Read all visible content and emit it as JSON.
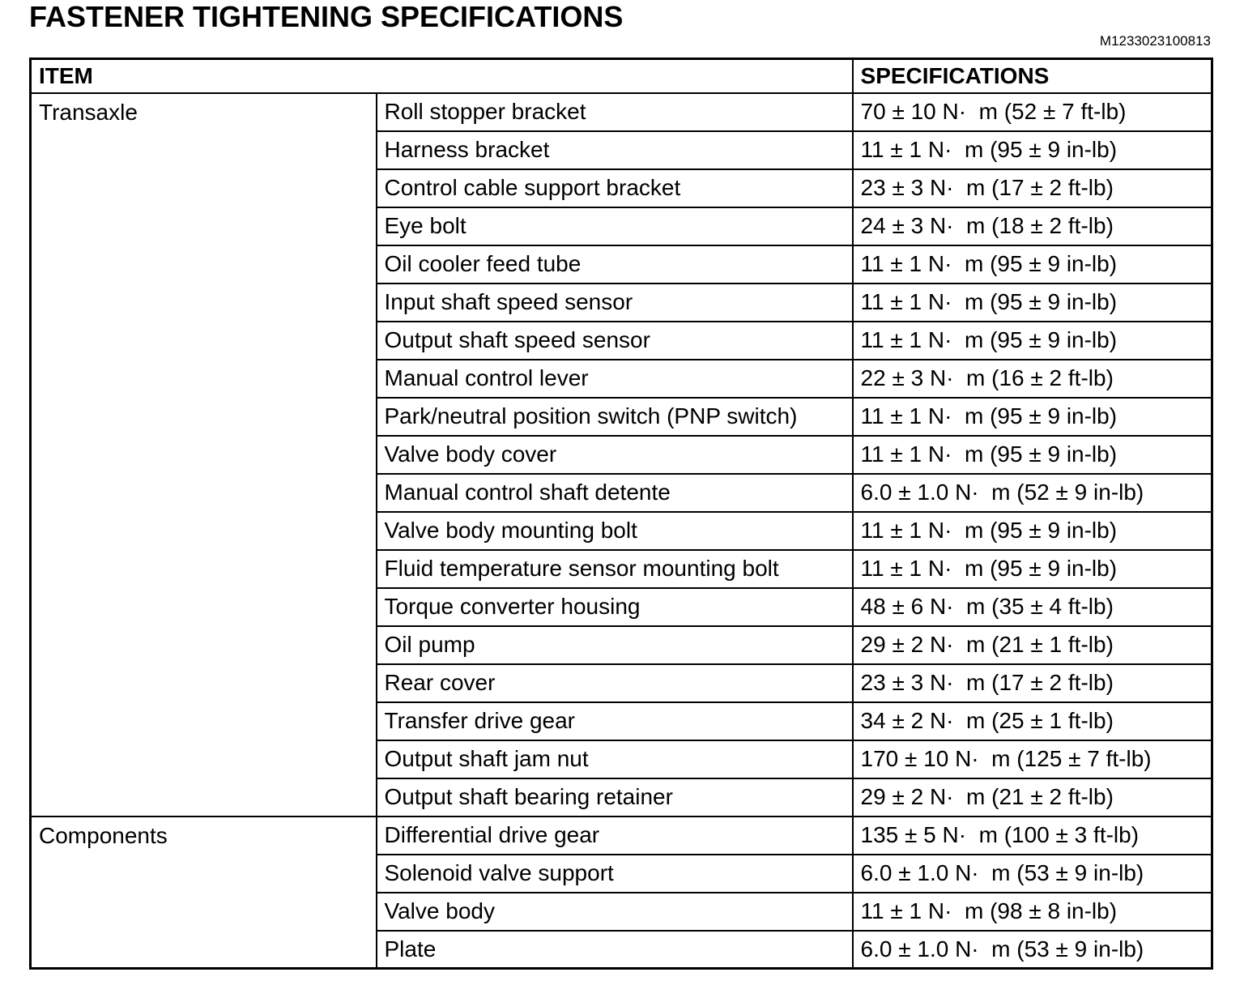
{
  "page": {
    "title": "FASTENER TIGHTENING SPECIFICATIONS",
    "doc_code": "M1233023100813"
  },
  "colors": {
    "text": "#000000",
    "background": "#ffffff",
    "border": "#000000"
  },
  "table": {
    "headers": {
      "item": "ITEM",
      "specifications": "SPECIFICATIONS"
    },
    "groups": [
      {
        "name": "Transaxle",
        "rows": [
          {
            "item": "Roll stopper bracket",
            "spec": "70 ± 10 N·  m (52 ± 7 ft-lb)"
          },
          {
            "item": "Harness bracket",
            "spec": "11 ± 1 N·  m (95 ± 9 in-lb)"
          },
          {
            "item": "Control cable support bracket",
            "spec": "23 ± 3 N·  m (17 ± 2 ft-lb)"
          },
          {
            "item": "Eye bolt",
            "spec": "24 ± 3 N·  m (18 ± 2 ft-lb)"
          },
          {
            "item": "Oil cooler feed tube",
            "spec": "11 ± 1 N·  m (95 ± 9 in-lb)"
          },
          {
            "item": "Input shaft speed sensor",
            "spec": "11 ± 1 N·  m (95 ± 9 in-lb)"
          },
          {
            "item": "Output shaft speed sensor",
            "spec": "11 ± 1 N·  m (95 ± 9 in-lb)"
          },
          {
            "item": "Manual control lever",
            "spec": "22 ± 3 N·  m (16 ± 2 ft-lb)"
          },
          {
            "item": "Park/neutral position switch (PNP switch)",
            "spec": "11 ± 1 N·  m (95 ± 9 in-lb)"
          },
          {
            "item": "Valve body cover",
            "spec": "11 ± 1 N·  m (95 ± 9 in-lb)"
          },
          {
            "item": "Manual control shaft detente",
            "spec": "6.0 ± 1.0 N·  m (52 ± 9 in-lb)"
          },
          {
            "item": "Valve body mounting bolt",
            "spec": "11 ± 1 N·  m (95 ± 9 in-lb)"
          },
          {
            "item": "Fluid temperature sensor mounting bolt",
            "spec": "11 ± 1 N·  m (95 ± 9 in-lb)"
          },
          {
            "item": "Torque converter housing",
            "spec": "48 ± 6 N·  m (35 ± 4 ft-lb)"
          },
          {
            "item": "Oil pump",
            "spec": "29 ± 2 N·  m (21 ± 1 ft-lb)"
          },
          {
            "item": "Rear cover",
            "spec": "23 ± 3 N·  m (17 ± 2 ft-lb)"
          },
          {
            "item": "Transfer drive gear",
            "spec": "34 ± 2 N·  m (25 ± 1 ft-lb)"
          },
          {
            "item": "Output shaft jam nut",
            "spec": "170 ± 10 N·  m (125 ± 7 ft-lb)"
          },
          {
            "item": "Output shaft bearing retainer",
            "spec": "29 ± 2 N·  m (21 ± 2 ft-lb)"
          }
        ]
      },
      {
        "name": "Components",
        "rows": [
          {
            "item": "Differential drive gear",
            "spec": "135 ± 5 N·  m (100 ± 3 ft-lb)"
          },
          {
            "item": "Solenoid valve support",
            "spec": "6.0 ± 1.0 N·  m (53 ± 9 in-lb)"
          },
          {
            "item": "Valve body",
            "spec": "11 ± 1 N·  m (98 ± 8 in-lb)"
          },
          {
            "item": "Plate",
            "spec": "6.0 ± 1.0 N·  m (53 ± 9 in-lb)"
          }
        ]
      }
    ]
  }
}
